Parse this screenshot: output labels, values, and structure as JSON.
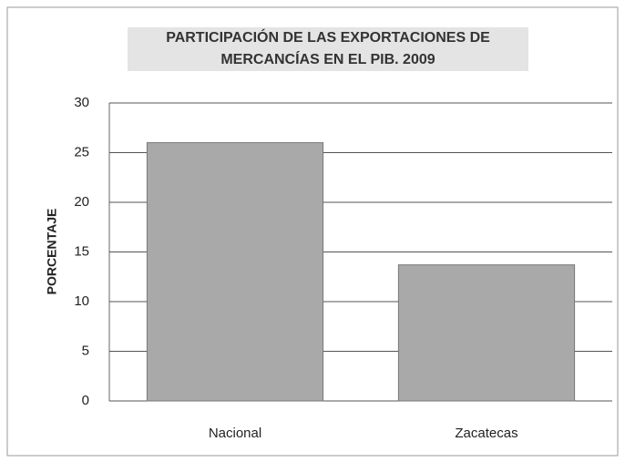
{
  "chart_data": {
    "type": "bar",
    "title": "PARTICIPACIÓN DE LAS EXPORTACIONES DE MERCANCÍAS EN EL PIB.  2009",
    "y_label": "PORCENTAJE",
    "categories": [
      "Nacional",
      "Zacatecas"
    ],
    "values": [
      26,
      13.7
    ],
    "color": "#a9a9a9",
    "ylim": [
      0,
      30
    ],
    "yticks": [
      0,
      5,
      10,
      15,
      20,
      25,
      30
    ],
    "grid": true
  }
}
